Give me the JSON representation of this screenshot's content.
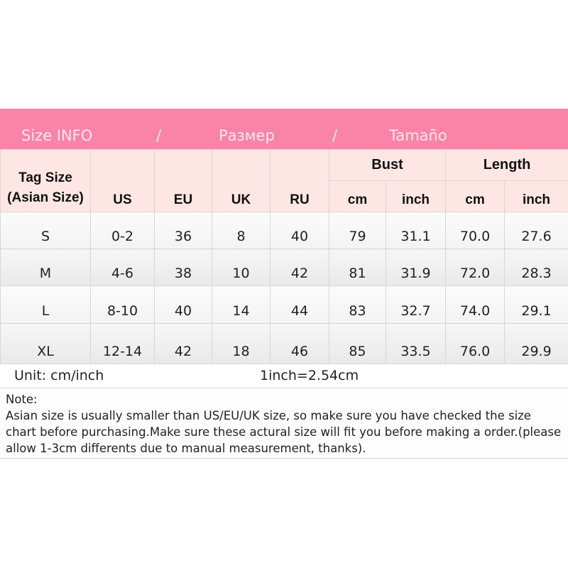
{
  "title": {
    "left": "Size INFO",
    "sep1": "/",
    "middle": "Размер",
    "sep2": "/",
    "right": "Tamaño"
  },
  "header": {
    "tag_size_line1": "Tag Size",
    "tag_size_line2": "(Asian Size)",
    "us": "US",
    "eu": "EU",
    "uk": "UK",
    "ru": "RU",
    "bust": "Bust",
    "length": "Length",
    "bust_cm": "cm",
    "bust_inch": "inch",
    "length_cm": "cm",
    "length_inch": "inch"
  },
  "rows": [
    [
      "S",
      "0-2",
      "36",
      "8",
      "40",
      "79",
      "31.1",
      "70.0",
      "27.6"
    ],
    [
      "M",
      "4-6",
      "38",
      "10",
      "42",
      "81",
      "31.9",
      "72.0",
      "28.3"
    ],
    [
      "L",
      "8-10",
      "40",
      "14",
      "44",
      "83",
      "32.7",
      "74.0",
      "29.1"
    ],
    [
      "XL",
      "12-14",
      "42",
      "18",
      "46",
      "85",
      "33.5",
      "76.0",
      "29.9"
    ]
  ],
  "unit": {
    "label": "Unit: cm/inch",
    "conversion": "1inch=2.54cm"
  },
  "note": {
    "heading": "Note:",
    "text": "Asian size is usually smaller than US/EU/UK size, so make sure you have checked the size chart before purchasing.Make sure these actural size will fit you before making a order.(please allow 1-3cm differents due to manual measurement, thanks)."
  },
  "colors": {
    "title_bg": "#f984a8",
    "header_bg": "#fde6e4"
  }
}
